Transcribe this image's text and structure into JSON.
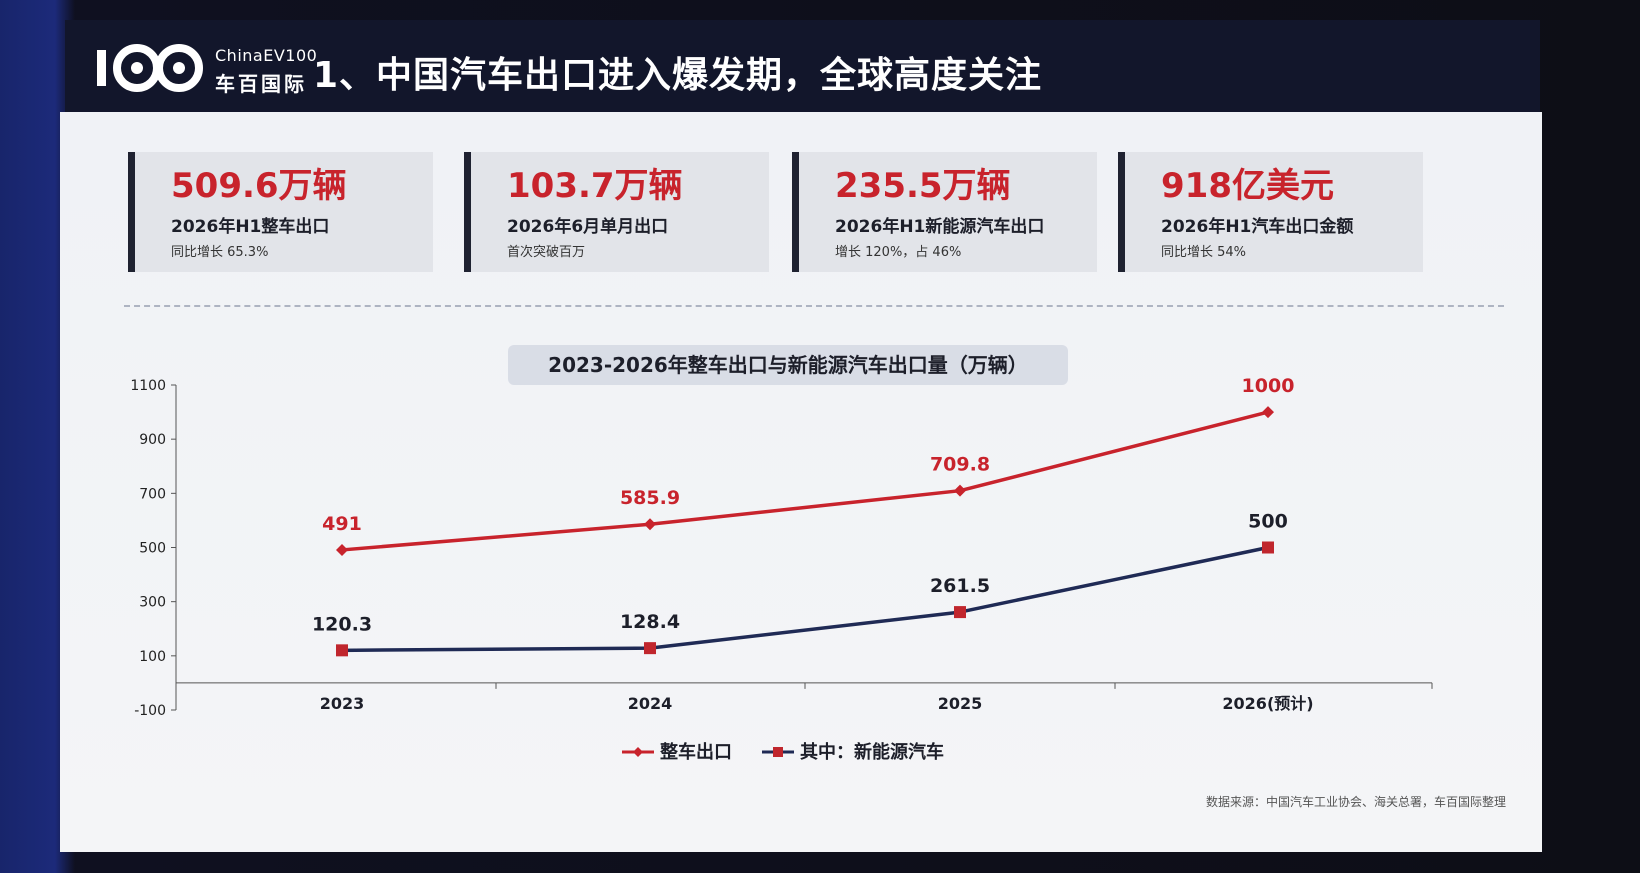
{
  "header": {
    "logo_en": "ChinaEV100",
    "logo_cn": "车百国际",
    "title": "1、中国汽车出口进入爆发期，全球高度关注"
  },
  "kpis": [
    {
      "value": "509.6万辆",
      "label": "2026年H1整车出口",
      "note": "同比增长 65.3%"
    },
    {
      "value": "103.7万辆",
      "label": "2026年6月单月出口",
      "note": "首次突破百万"
    },
    {
      "value": "235.5万辆",
      "label": "2026年H1新能源汽车出口",
      "note": "增长 120%，占 46%"
    },
    {
      "value": "918亿美元",
      "label": "2026年H1汽车出口金额",
      "note": "同比增长 54%"
    }
  ],
  "colors": {
    "accent_red": "#c8232c",
    "series1": "#c8232c",
    "series2": "#1f2a55",
    "marker2": "#c0262d"
  },
  "chart_data": {
    "type": "line",
    "title": "2023-2026年整车出口与新能源汽车出口量（万辆）",
    "categories": [
      "2023",
      "2024",
      "2025",
      "2026(预计)"
    ],
    "series": [
      {
        "name": "整车出口",
        "values": [
          491,
          585.9,
          709.8,
          1000
        ],
        "labels": [
          "491",
          "585.9",
          "709.8",
          "1000"
        ],
        "marker": "diamond"
      },
      {
        "name": "其中：新能源汽车",
        "values": [
          120.3,
          128.4,
          261.5,
          500
        ],
        "labels": [
          "120.3",
          "128.4",
          "261.5",
          "500"
        ],
        "marker": "square"
      }
    ],
    "yticks": [
      1100,
      900,
      700,
      500,
      300,
      100,
      -100
    ],
    "ylim": [
      -100,
      1100
    ],
    "grid": false,
    "legend": "bottom-center"
  },
  "footer": {
    "source": "数据来源：中国汽车工业协会、海关总署，车百国际整理"
  }
}
